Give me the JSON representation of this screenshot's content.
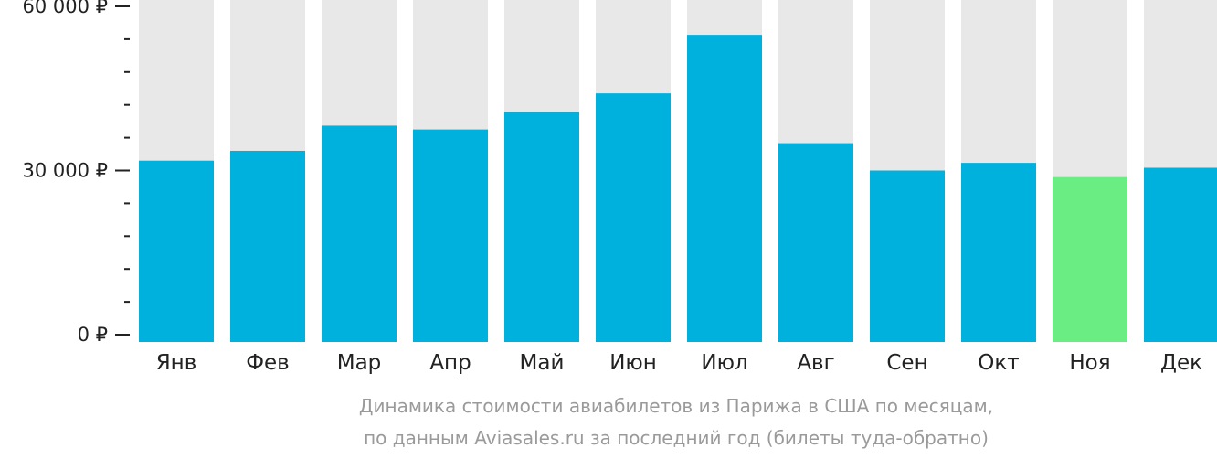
{
  "chart_data": {
    "type": "bar",
    "categories": [
      "Янв",
      "Фев",
      "Мар",
      "Апр",
      "Май",
      "Июн",
      "Июл",
      "Авг",
      "Сен",
      "Окт",
      "Ноя",
      "Дек"
    ],
    "values": [
      31800,
      33600,
      38200,
      37500,
      40700,
      44100,
      54800,
      35000,
      30000,
      31400,
      28800,
      30500
    ],
    "highlight_index": 10,
    "ylim": [
      0,
      60000
    ],
    "yticks": [
      {
        "value": 0,
        "label": "0 ₽"
      },
      {
        "value": 30000,
        "label": "30 000 ₽"
      },
      {
        "value": 60000,
        "label": "60 000 ₽"
      }
    ],
    "minor_tick_step": 6000,
    "title": "",
    "xlabel": "",
    "ylabel": "",
    "grid": false,
    "legend": "none",
    "colors": {
      "bar": "#00b0dd",
      "highlight": "#6aee84",
      "background_bar": "#e8e8e8",
      "axis": "#222222"
    }
  },
  "caption": {
    "line1": "Динамика стоимости авиабилетов из Парижа в США по месяцам,",
    "line2": "по данным Aviasales.ru за последний год (билеты туда-обратно)"
  }
}
